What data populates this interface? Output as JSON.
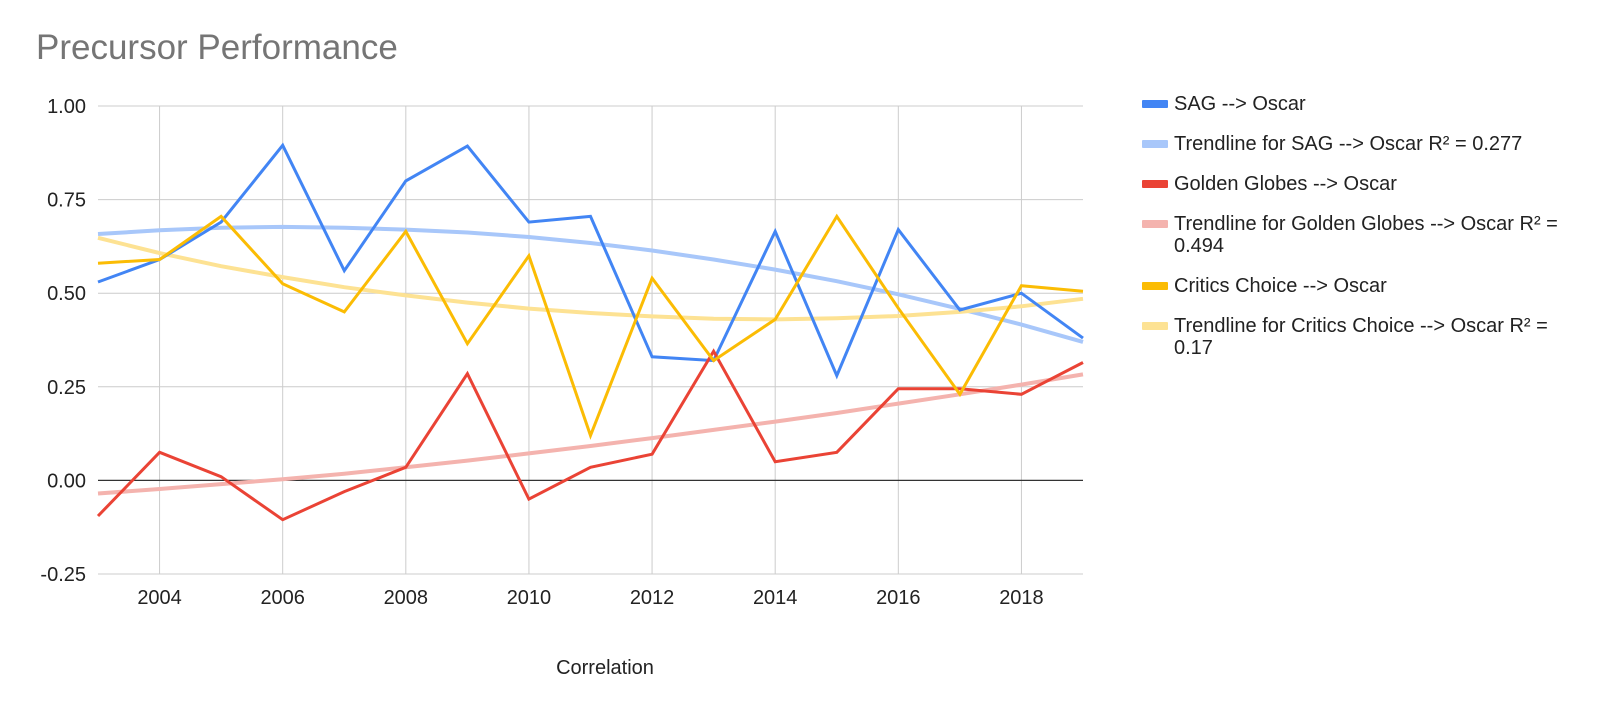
{
  "chart_data": {
    "type": "line",
    "title": "Precursor Performance",
    "xlabel": "Correlation",
    "ylabel": "",
    "xlim": [
      2003,
      2019
    ],
    "ylim": [
      -0.25,
      1.0
    ],
    "x_ticks": [
      2004,
      2006,
      2008,
      2010,
      2012,
      2014,
      2016,
      2018
    ],
    "x_tick_labels": [
      "2004",
      "2006",
      "2008",
      "2010",
      "2012",
      "2014",
      "2016",
      "2018"
    ],
    "y_ticks": [
      1.0,
      0.75,
      0.5,
      0.25,
      0.0,
      -0.25
    ],
    "y_tick_labels": [
      "1.00",
      "0.75",
      "0.50",
      "0.25",
      "0.00",
      "-0.25"
    ],
    "grid": true,
    "legend_position": "right",
    "x": [
      2003,
      2004,
      2005,
      2006,
      2007,
      2008,
      2009,
      2010,
      2011,
      2012,
      2013,
      2014,
      2015,
      2016,
      2017,
      2018,
      2019
    ],
    "series": [
      {
        "name": "SAG --> Oscar",
        "color": "#4285f4",
        "kind": "data",
        "values": [
          0.53,
          0.59,
          0.69,
          0.895,
          0.56,
          0.8,
          0.893,
          0.69,
          0.705,
          0.33,
          0.32,
          0.665,
          0.28,
          0.67,
          0.455,
          0.5,
          0.38
        ]
      },
      {
        "name": "Trendline for SAG --> Oscar R² = 0.277",
        "color": "#a8c7fa",
        "kind": "trend",
        "values": [
          0.658,
          0.668,
          0.675,
          0.677,
          0.675,
          0.67,
          0.662,
          0.65,
          0.634,
          0.614,
          0.59,
          0.563,
          0.532,
          0.497,
          0.458,
          0.416,
          0.37
        ]
      },
      {
        "name": "Golden Globes --> Oscar",
        "color": "#ea4335",
        "kind": "data",
        "values": [
          -0.095,
          0.075,
          0.01,
          -0.105,
          -0.03,
          0.035,
          0.285,
          -0.05,
          0.035,
          0.07,
          0.345,
          0.05,
          0.075,
          0.245,
          0.245,
          0.23,
          0.315
        ]
      },
      {
        "name": "Trendline for Golden Globes --> Oscar R² = 0.494",
        "color": "#f4b3ae",
        "kind": "trend",
        "values": [
          -0.035,
          -0.023,
          -0.01,
          0.003,
          0.018,
          0.035,
          0.053,
          0.072,
          0.092,
          0.113,
          0.135,
          0.157,
          0.18,
          0.205,
          0.23,
          0.256,
          0.283
        ]
      },
      {
        "name": "Critics Choice --> Oscar",
        "color": "#fbbc04",
        "kind": "data",
        "values": [
          0.58,
          0.59,
          0.705,
          0.525,
          0.45,
          0.665,
          0.365,
          0.6,
          0.12,
          0.54,
          0.32,
          0.43,
          0.705,
          0.46,
          0.23,
          0.52,
          0.505
        ]
      },
      {
        "name": "Trendline for Critics Choice --> Oscar R² = 0.17",
        "color": "#fde293",
        "kind": "trend",
        "values": [
          0.648,
          0.607,
          0.572,
          0.543,
          0.516,
          0.494,
          0.475,
          0.459,
          0.447,
          0.438,
          0.432,
          0.43,
          0.433,
          0.439,
          0.45,
          0.465,
          0.485
        ]
      }
    ]
  },
  "legend": {
    "items": [
      {
        "label": "SAG --> Oscar",
        "color": "#4285f4"
      },
      {
        "label": "Trendline for SAG --> Oscar R² = 0.277",
        "color": "#a8c7fa"
      },
      {
        "label": "Golden Globes --> Oscar",
        "color": "#ea4335"
      },
      {
        "label": "Trendline for Golden Globes --> Oscar R² = 0.494",
        "color": "#f4b3ae"
      },
      {
        "label": "Critics Choice --> Oscar",
        "color": "#fbbc04"
      },
      {
        "label": "Trendline for Critics Choice --> Oscar R² = 0.17",
        "color": "#fde293"
      }
    ]
  }
}
